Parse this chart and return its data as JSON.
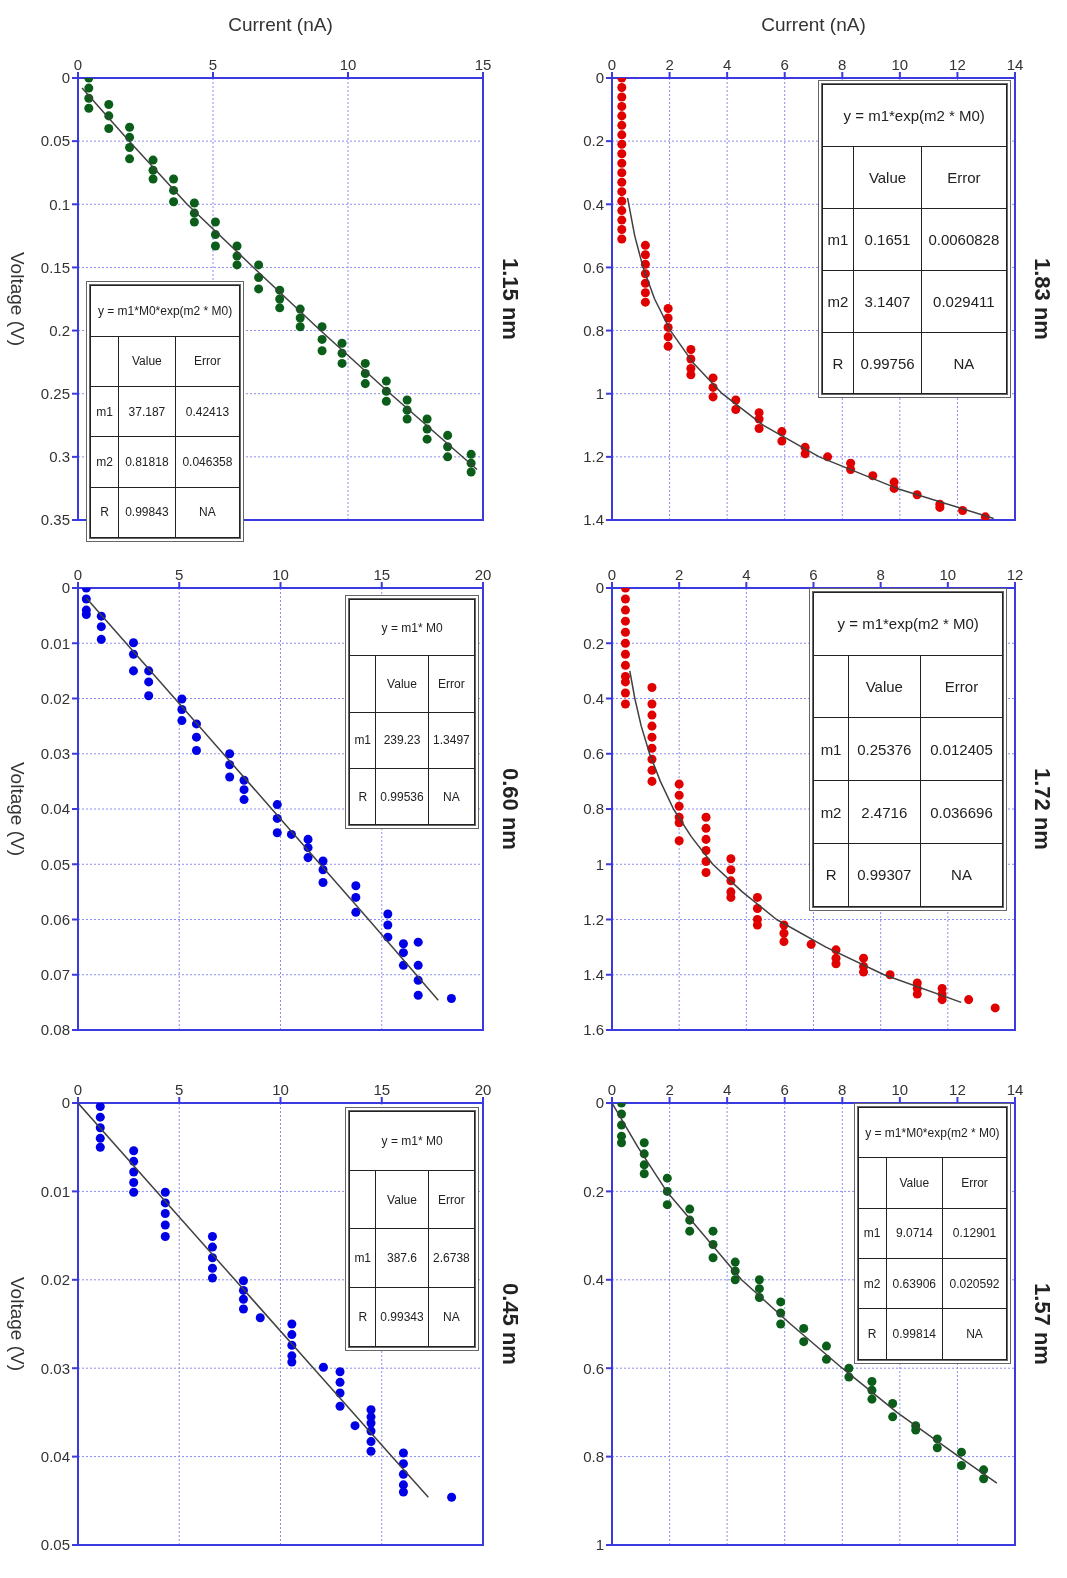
{
  "chart_data": [
    {
      "type": "scatter",
      "title": "1.83 nm",
      "xlabel": "Current (nA)",
      "xlim": [
        0,
        14
      ],
      "xticks": [
        0,
        2,
        4,
        6,
        8,
        10,
        12,
        14
      ],
      "ylim": [
        1.4,
        0
      ],
      "yticks": [
        0,
        0.2,
        0.4,
        0.6,
        0.8,
        1,
        1.2,
        1.4
      ],
      "grid": true,
      "marker": "circle",
      "line_style": "solid",
      "annotations": [
        "y = m1*exp(m2 * M0)",
        "Value",
        "Error",
        "m1",
        "0.1651",
        "0.0060828",
        "m2",
        "3.1407",
        "0.029411",
        "R",
        "0.99756",
        "NA"
      ],
      "series": [
        {
          "type": "scatter",
          "color": "#e00000",
          "values": [
            0,
            0.03,
            0.06,
            0.09,
            0.12,
            0.15,
            0.18,
            0.21,
            0.24,
            0.27,
            0.3,
            0.33,
            0.36,
            0.39,
            0.42,
            0.45,
            0.48,
            0.51,
            0.53,
            0.56,
            0.59,
            0.62,
            0.65,
            0.68,
            0.71,
            0.73,
            0.76,
            0.79,
            0.82,
            0.85,
            0.86,
            0.89,
            0.92,
            0.94,
            0.95,
            0.98,
            1.01,
            1.02,
            1.05,
            1.06,
            1.08,
            1.11,
            1.12,
            1.15,
            1.17,
            1.19,
            1.2,
            1.22,
            1.24,
            1.26,
            1.28,
            1.3,
            1.32,
            1.35,
            1.36,
            1.37,
            1.39
          ],
          "x": [
            0.34,
            0.34,
            0.34,
            0.34,
            0.34,
            0.34,
            0.34,
            0.34,
            0.34,
            0.34,
            0.34,
            0.34,
            0.34,
            0.34,
            0.34,
            0.34,
            0.34,
            0.34,
            1.16,
            1.16,
            1.16,
            1.16,
            1.16,
            1.16,
            1.16,
            1.95,
            1.95,
            1.95,
            1.95,
            1.95,
            2.74,
            2.74,
            2.74,
            2.74,
            3.51,
            3.51,
            3.51,
            4.3,
            4.3,
            5.11,
            5.11,
            5.11,
            5.9,
            5.9,
            6.71,
            6.71,
            7.49,
            8.29,
            8.29,
            9.06,
            9.8,
            9.8,
            10.6,
            11.39,
            11.39,
            12.18,
            12.97
          ]
        },
        {
          "type": "line",
          "marker": "none",
          "color": "#404040",
          "values": [
            0.38,
            0.5,
            0.6,
            0.7,
            0.8,
            0.9,
            1.0,
            1.1,
            1.2,
            1.3,
            1.395
          ],
          "x": [
            0.54,
            0.79,
            1.08,
            1.48,
            2.03,
            2.8,
            3.83,
            5.26,
            7.2,
            9.9,
            13.26
          ]
        }
      ]
    },
    {
      "type": "scatter",
      "title": "1.72 nm",
      "xlim": [
        0,
        12
      ],
      "xticks": [
        0,
        2,
        4,
        6,
        8,
        10,
        12
      ],
      "ylim": [
        1.6,
        0
      ],
      "yticks": [
        0,
        0.2,
        0.4,
        0.6,
        0.8,
        1,
        1.2,
        1.4,
        1.6
      ],
      "grid": true,
      "marker": "circle",
      "line_style": "solid",
      "annotations": [
        "y = m1*exp(m2 * M0)",
        "Value",
        "Error",
        "m1",
        "0.25376",
        "0.012405",
        "m2",
        "2.4716",
        "0.036696",
        "R",
        "0.99307",
        "NA"
      ],
      "series": [
        {
          "type": "scatter",
          "color": "#e00000",
          "values": [
            0,
            0.04,
            0.08,
            0.12,
            0.16,
            0.2,
            0.24,
            0.28,
            0.32,
            0.34,
            0.38,
            0.42,
            0.36,
            0.42,
            0.46,
            0.5,
            0.54,
            0.58,
            0.62,
            0.66,
            0.7,
            0.71,
            0.75,
            0.79,
            0.83,
            0.85,
            0.915,
            0.83,
            0.87,
            0.91,
            0.95,
            0.99,
            1.03,
            0.98,
            1.02,
            1.06,
            1.1,
            1.12,
            1.12,
            1.16,
            1.2,
            1.22,
            1.22,
            1.25,
            1.28,
            1.29,
            1.31,
            1.34,
            1.36,
            1.34,
            1.37,
            1.39,
            1.4,
            1.43,
            1.45,
            1.47,
            1.45,
            1.47,
            1.49,
            1.49,
            1.52
          ],
          "x": [
            0.4,
            0.4,
            0.4,
            0.4,
            0.4,
            0.4,
            0.4,
            0.4,
            0.4,
            0.4,
            0.4,
            0.4,
            1.19,
            1.19,
            1.19,
            1.19,
            1.19,
            1.19,
            1.19,
            1.19,
            1.19,
            2.0,
            2.0,
            2.0,
            2.0,
            2.0,
            2.0,
            2.8,
            2.8,
            2.8,
            2.8,
            2.8,
            2.8,
            3.54,
            3.54,
            3.54,
            3.54,
            3.54,
            4.33,
            4.33,
            4.33,
            4.33,
            5.12,
            5.12,
            5.12,
            5.93,
            6.67,
            6.67,
            6.67,
            7.49,
            7.49,
            7.49,
            8.28,
            9.09,
            9.09,
            9.09,
            9.83,
            9.83,
            9.83,
            10.62,
            11.41
          ]
        },
        {
          "type": "line",
          "marker": "none",
          "color": "#404040",
          "values": [
            0.3,
            0.4,
            0.5,
            0.6,
            0.7,
            0.8,
            0.9,
            1.0,
            1.1,
            1.2,
            1.3,
            1.4,
            1.5
          ],
          "x": [
            0.53,
            0.68,
            0.87,
            1.12,
            1.44,
            1.83,
            2.36,
            3.0,
            3.88,
            4.9,
            6.37,
            8.1,
            10.4
          ]
        }
      ]
    },
    {
      "type": "scatter",
      "title": "1.57 nm",
      "xlim": [
        0,
        14
      ],
      "xticks": [
        0,
        2,
        4,
        6,
        8,
        10,
        12,
        14
      ],
      "ylim": [
        1,
        0
      ],
      "yticks": [
        0,
        0.2,
        0.4,
        0.6,
        0.8,
        1
      ],
      "grid": true,
      "marker": "circle",
      "line_style": "solid",
      "annotations": [
        "y = m1*M0*exp(m2 * M0)",
        "Value",
        "Error",
        "m1",
        "9.0714",
        "0.12901",
        "m2",
        "0.63906",
        "0.020592",
        "R",
        "0.99814",
        "NA"
      ],
      "series": [
        {
          "type": "scatter",
          "color": "#0b5e1a",
          "values": [
            0,
            0.025,
            0.05,
            0.075,
            0.09,
            0.09,
            0.115,
            0.14,
            0.16,
            0.17,
            0.2,
            0.23,
            0.24,
            0.265,
            0.29,
            0.29,
            0.32,
            0.35,
            0.36,
            0.38,
            0.4,
            0.4,
            0.42,
            0.44,
            0.45,
            0.475,
            0.5,
            0.51,
            0.54,
            0.55,
            0.58,
            0.6,
            0.62,
            0.63,
            0.65,
            0.67,
            0.68,
            0.71,
            0.73,
            0.74,
            0.76,
            0.78,
            0.79,
            0.82,
            0.83,
            0.85
          ],
          "x": [
            0.33,
            0.33,
            0.33,
            0.33,
            0.33,
            1.12,
            1.12,
            1.12,
            1.12,
            1.92,
            1.92,
            1.92,
            2.7,
            2.7,
            2.7,
            3.51,
            3.51,
            3.51,
            4.28,
            4.28,
            4.28,
            5.12,
            5.12,
            5.12,
            5.86,
            5.86,
            5.86,
            6.66,
            6.66,
            7.45,
            7.45,
            8.23,
            8.23,
            9.03,
            9.03,
            9.03,
            9.75,
            9.75,
            10.55,
            10.55,
            11.3,
            11.3,
            12.14,
            12.14,
            12.91,
            12.91
          ]
        },
        {
          "type": "line",
          "marker": "none",
          "color": "#404040",
          "values": [
            0,
            0.1,
            0.2,
            0.3,
            0.4,
            0.5,
            0.6,
            0.7,
            0.8,
            0.86
          ],
          "x": [
            0,
            0.9,
            1.9,
            3.2,
            4.5,
            6.2,
            8.0,
            9.9,
            12.05,
            13.37
          ]
        }
      ]
    },
    {
      "type": "scatter",
      "title": "1.15 nm",
      "xlabel": "Current (nA)",
      "ylabel": "Voltage (V)",
      "xlim": [
        0,
        15
      ],
      "xticks": [
        0,
        5,
        10,
        15
      ],
      "ylim": [
        0.35,
        0
      ],
      "yticks": [
        0,
        0.05,
        0.1,
        0.15,
        0.2,
        0.25,
        0.3,
        0.35
      ],
      "grid": true,
      "marker": "circle",
      "line_style": "solid",
      "annotations": [
        "y = m1*M0*exp(m2 * M0)",
        "Value",
        "Error",
        "m1",
        "37.187",
        "0.42413",
        "m2",
        "0.81818",
        "0.046358",
        "R",
        "0.99843",
        "NA"
      ],
      "series": [
        {
          "type": "scatter",
          "color": "#0b5e1a",
          "values": [
            0,
            0.008,
            0.016,
            0.024,
            0.021,
            0.03,
            0.04,
            0.039,
            0.047,
            0.055,
            0.064,
            0.065,
            0.073,
            0.08,
            0.08,
            0.089,
            0.098,
            0.099,
            0.107,
            0.114,
            0.114,
            0.124,
            0.133,
            0.133,
            0.141,
            0.148,
            0.148,
            0.158,
            0.167,
            0.168,
            0.175,
            0.182,
            0.183,
            0.19,
            0.197,
            0.197,
            0.207,
            0.216,
            0.21,
            0.218,
            0.226,
            0.226,
            0.234,
            0.242,
            0.24,
            0.248,
            0.256,
            0.255,
            0.263,
            0.27,
            0.27,
            0.278,
            0.286,
            0.283,
            0.292,
            0.3,
            0.298,
            0.305,
            0.312
          ],
          "x": [
            0.4,
            0.4,
            0.4,
            0.4,
            1.14,
            1.14,
            1.14,
            1.91,
            1.91,
            1.91,
            1.91,
            2.78,
            2.78,
            2.78,
            3.54,
            3.54,
            3.54,
            4.31,
            4.31,
            4.31,
            5.09,
            5.09,
            5.09,
            5.89,
            5.89,
            5.89,
            6.69,
            6.69,
            6.69,
            7.47,
            7.47,
            7.47,
            8.23,
            8.23,
            8.23,
            9.04,
            9.04,
            9.04,
            9.78,
            9.78,
            9.78,
            10.64,
            10.64,
            10.64,
            11.42,
            11.42,
            11.42,
            12.19,
            12.19,
            12.19,
            12.93,
            12.93,
            12.93,
            13.69,
            13.69,
            13.69,
            14.56,
            14.56,
            14.56
          ]
        },
        {
          "type": "line",
          "marker": "none",
          "color": "#404040",
          "values": [
            0.008,
            0.05,
            0.1,
            0.15,
            0.2,
            0.25,
            0.31
          ],
          "x": [
            0.15,
            1.9,
            4.04,
            6.5,
            8.98,
            11.57,
            14.78
          ]
        }
      ]
    },
    {
      "type": "scatter",
      "title": "0.60 nm",
      "ylabel": "Voltage (V)",
      "xlim": [
        0,
        20
      ],
      "xticks": [
        0,
        5,
        10,
        15,
        20
      ],
      "ylim": [
        0.08,
        0
      ],
      "yticks": [
        0,
        0.01,
        0.02,
        0.03,
        0.04,
        0.05,
        0.06,
        0.07,
        0.08
      ],
      "grid": true,
      "marker": "circle",
      "line_style": "solid",
      "annotations": [
        "y = m1* M0",
        "Value",
        "Error",
        "m1",
        "239.23",
        "1.3497",
        "R",
        "0.99536",
        "NA"
      ],
      "series": [
        {
          "type": "scatter",
          "color": "#0000e6",
          "values": [
            0,
            0.002,
            0.004,
            0.0048,
            0.0051,
            0.007,
            0.0093,
            0.0099,
            0.012,
            0.015,
            0.015,
            0.017,
            0.0195,
            0.0201,
            0.022,
            0.024,
            0.0246,
            0.027,
            0.0294,
            0.03,
            0.032,
            0.0342,
            0.0348,
            0.0365,
            0.0383,
            0.0392,
            0.0417,
            0.0443,
            0.0446,
            0.0455,
            0.047,
            0.0488,
            0.0494,
            0.051,
            0.0533,
            0.0539,
            0.056,
            0.0587,
            0.059,
            0.061,
            0.0632,
            0.0644,
            0.066,
            0.0683,
            0.0641,
            0.0683,
            0.071,
            0.0737,
            0.0743
          ],
          "x": [
            0.41,
            0.41,
            0.41,
            0.41,
            1.15,
            1.15,
            1.15,
            2.74,
            2.74,
            2.74,
            3.49,
            3.49,
            3.49,
            5.13,
            5.13,
            5.13,
            5.85,
            5.85,
            5.85,
            7.49,
            7.49,
            7.49,
            8.2,
            8.2,
            8.2,
            9.84,
            9.84,
            9.84,
            10.54,
            11.36,
            11.36,
            11.36,
            12.1,
            12.1,
            12.1,
            13.72,
            13.72,
            13.72,
            15.3,
            15.3,
            15.3,
            16.07,
            16.07,
            16.07,
            16.8,
            16.8,
            16.8,
            16.8,
            18.44
          ]
        },
        {
          "type": "line",
          "marker": "none",
          "color": "#404040",
          "values": [
            0.0018,
            0.02,
            0.04,
            0.06,
            0.0746
          ],
          "x": [
            0.41,
            4.78,
            9.57,
            14.35,
            17.79
          ]
        }
      ]
    },
    {
      "type": "scatter",
      "title": "0.45 nm",
      "ylabel": "Voltage (V)",
      "xlim": [
        0,
        20
      ],
      "xticks": [
        0,
        5,
        10,
        15,
        20
      ],
      "ylim": [
        0.05,
        0
      ],
      "yticks": [
        0,
        0.01,
        0.02,
        0.03,
        0.04,
        0.05
      ],
      "grid": true,
      "marker": "circle",
      "line_style": "solid",
      "annotations": [
        "y = m1* M0",
        "Value",
        "Error",
        "m1",
        "387.6",
        "2.6738",
        "R",
        "0.99343",
        "NA"
      ],
      "series": [
        {
          "type": "scatter",
          "color": "#0000e6",
          "values": [
            0.0004,
            0.0016,
            0.0028,
            0.004,
            0.005,
            0.0054,
            0.0066,
            0.0078,
            0.009,
            0.0101,
            0.0101,
            0.0113,
            0.0125,
            0.0138,
            0.0151,
            0.0151,
            0.0163,
            0.0175,
            0.0187,
            0.0198,
            0.0201,
            0.0212,
            0.0222,
            0.0233,
            0.0243,
            0.025,
            0.0262,
            0.0274,
            0.0286,
            0.0293,
            0.0299,
            0.0304,
            0.0316,
            0.0328,
            0.0343,
            0.0365,
            0.0347,
            0.0355,
            0.0362,
            0.0371,
            0.0383,
            0.0394,
            0.0396,
            0.0408,
            0.042,
            0.0432,
            0.044,
            0.0446
          ],
          "x": [
            1.1,
            1.1,
            1.1,
            1.1,
            1.1,
            2.75,
            2.75,
            2.75,
            2.75,
            2.75,
            4.31,
            4.31,
            4.31,
            4.31,
            4.31,
            6.64,
            6.64,
            6.64,
            6.64,
            6.64,
            8.17,
            8.17,
            8.17,
            8.17,
            9.0,
            10.56,
            10.56,
            10.56,
            10.56,
            10.56,
            12.12,
            12.94,
            12.94,
            12.94,
            12.94,
            13.68,
            14.47,
            14.47,
            14.47,
            14.47,
            14.47,
            14.47,
            16.07,
            16.07,
            16.07,
            16.07,
            16.07,
            18.45
          ]
        },
        {
          "type": "line",
          "marker": "none",
          "color": "#404040",
          "values": [
            0,
            0.01,
            0.02,
            0.03,
            0.04,
            0.0446
          ],
          "x": [
            0,
            3.88,
            7.75,
            11.63,
            15.5,
            17.3
          ]
        }
      ]
    }
  ]
}
